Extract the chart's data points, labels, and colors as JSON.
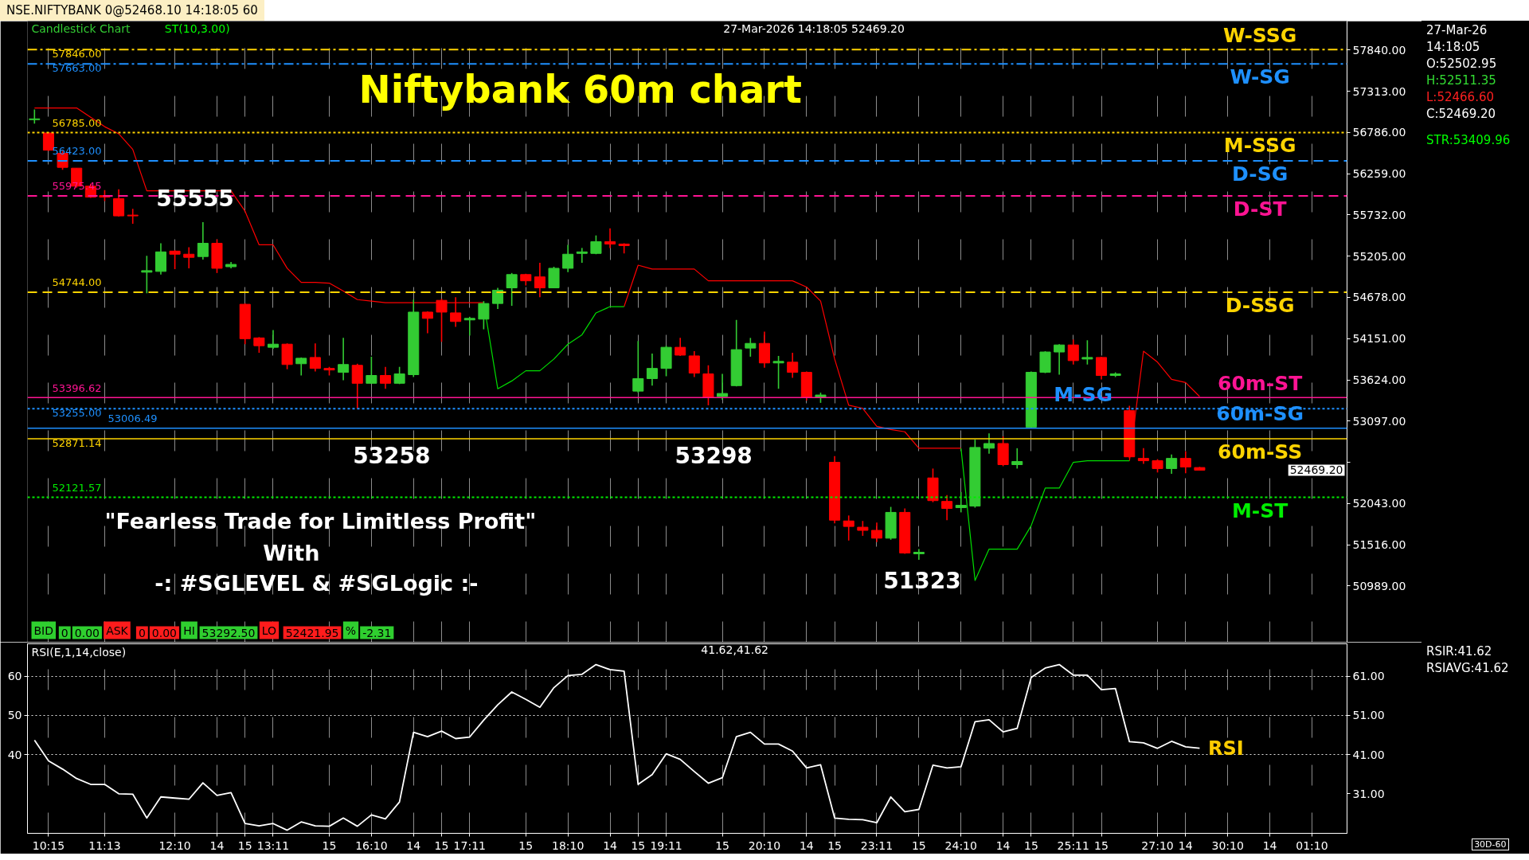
{
  "chart_data": [
    {
      "type": "candlestick",
      "title": "Niftybank 60m chart",
      "categories": [
        null,
        "10:15",
        null,
        null,
        null,
        "11:13",
        null,
        null,
        null,
        null,
        "12:10",
        null,
        null,
        "14",
        null,
        "15",
        null,
        "13:11",
        null,
        null,
        null,
        "15",
        null,
        null,
        "16:10",
        null,
        null,
        "14",
        null,
        "15",
        null,
        "17:11",
        null,
        null,
        null,
        "15",
        null,
        null,
        "18:10",
        null,
        null,
        "14",
        null,
        "15",
        null,
        "19:11",
        null,
        null,
        null,
        "15",
        null,
        null,
        "20:10",
        null,
        null,
        "14",
        null,
        "15",
        null,
        null,
        "23:11",
        null,
        null,
        "15",
        null,
        null,
        "24:10",
        null,
        null,
        "14",
        null,
        "15",
        null,
        null,
        "25:11",
        null,
        "15",
        null,
        null,
        null,
        "27:10",
        null,
        "14",
        null,
        null,
        "30:10",
        null,
        null,
        "14",
        null,
        null,
        "01:10",
        null,
        null
      ],
      "ohlc": [
        [
          56950,
          57080,
          56900,
          56960
        ],
        [
          56780,
          56790,
          56550,
          56560
        ],
        [
          56520,
          56550,
          56310,
          56340
        ],
        [
          56330,
          56330,
          56080,
          56100
        ],
        [
          56100,
          56130,
          55950,
          55960
        ],
        [
          55980,
          56050,
          55910,
          55960
        ],
        [
          55940,
          56060,
          55710,
          55720
        ],
        [
          55730,
          55810,
          55620,
          55720
        ],
        [
          55000,
          55210,
          54730,
          55020
        ],
        [
          55010,
          55370,
          54970,
          55260
        ],
        [
          55270,
          55280,
          55040,
          55230
        ],
        [
          55230,
          55320,
          55050,
          55190
        ],
        [
          55200,
          55640,
          55160,
          55370
        ],
        [
          55370,
          55420,
          54990,
          55050
        ],
        [
          55070,
          55130,
          55050,
          55100
        ],
        [
          54590,
          54600,
          54080,
          54150
        ],
        [
          54160,
          54170,
          53970,
          54060
        ],
        [
          54040,
          54260,
          54020,
          54080
        ],
        [
          54080,
          54090,
          53760,
          53820
        ],
        [
          53830,
          53910,
          53680,
          53900
        ],
        [
          53910,
          54090,
          53730,
          53770
        ],
        [
          53770,
          53790,
          53680,
          53750
        ],
        [
          53720,
          54160,
          53620,
          53820
        ],
        [
          53810,
          53830,
          53258,
          53580
        ],
        [
          53580,
          53920,
          53580,
          53680
        ],
        [
          53680,
          53790,
          53510,
          53580
        ],
        [
          53580,
          53790,
          53570,
          53700
        ],
        [
          53690,
          54650,
          53660,
          54490
        ],
        [
          54490,
          54500,
          54220,
          54410
        ],
        [
          54640,
          54660,
          54110,
          54490
        ],
        [
          54480,
          54680,
          54300,
          54370
        ],
        [
          54390,
          54430,
          54190,
          54410
        ],
        [
          54400,
          54630,
          54270,
          54600
        ],
        [
          54600,
          54800,
          54530,
          54770
        ],
        [
          54800,
          54990,
          54570,
          54970
        ],
        [
          54970,
          54980,
          54830,
          54890
        ],
        [
          54940,
          55120,
          54680,
          54800
        ],
        [
          54800,
          55070,
          54800,
          55050
        ],
        [
          55050,
          55350,
          55000,
          55230
        ],
        [
          55240,
          55310,
          55120,
          55260
        ],
        [
          55240,
          55470,
          55230,
          55390
        ],
        [
          55390,
          55560,
          55310,
          55360
        ],
        [
          55360,
          55370,
          55240,
          55340
        ],
        [
          53480,
          54120,
          53460,
          53640
        ],
        [
          53640,
          53960,
          53550,
          53770
        ],
        [
          53770,
          54060,
          53670,
          54040
        ],
        [
          54040,
          54160,
          53930,
          53940
        ],
        [
          53930,
          53990,
          53660,
          53710
        ],
        [
          53700,
          53810,
          53298,
          53400
        ],
        [
          53410,
          53700,
          53370,
          53450
        ],
        [
          53550,
          54390,
          53540,
          54010
        ],
        [
          54030,
          54160,
          53920,
          54090
        ],
        [
          54090,
          54240,
          53780,
          53840
        ],
        [
          53840,
          53930,
          53510,
          53860
        ],
        [
          53850,
          53970,
          53650,
          53720
        ],
        [
          53720,
          53730,
          53360,
          53400
        ],
        [
          53400,
          53460,
          53330,
          53430
        ],
        [
          52570,
          52650,
          51790,
          51830
        ],
        [
          51820,
          51890,
          51570,
          51750
        ],
        [
          51740,
          51820,
          51630,
          51700
        ],
        [
          51700,
          51800,
          51550,
          51600
        ],
        [
          51600,
          52000,
          51580,
          51930
        ],
        [
          51930,
          51980,
          51400,
          51410
        ],
        [
          51400,
          51460,
          51323,
          51420
        ],
        [
          52370,
          52490,
          52060,
          52080
        ],
        [
          52070,
          52150,
          51830,
          51980
        ],
        [
          51990,
          52190,
          51930,
          52020
        ],
        [
          52010,
          52860,
          51990,
          52760
        ],
        [
          52750,
          52940,
          52680,
          52810
        ],
        [
          52810,
          52900,
          52520,
          52540
        ],
        [
          52540,
          52750,
          52490,
          52580
        ],
        [
          53020,
          53730,
          53010,
          53720
        ],
        [
          53720,
          53990,
          53710,
          53980
        ],
        [
          53980,
          54080,
          53690,
          54070
        ],
        [
          54070,
          54140,
          53820,
          53870
        ],
        [
          53890,
          54130,
          53820,
          53910
        ],
        [
          53910,
          53920,
          53630,
          53680
        ],
        [
          53680,
          53720,
          53660,
          53700
        ],
        [
          53230,
          53292.5,
          52620,
          52640
        ],
        [
          52620,
          52750,
          52550,
          52590
        ],
        [
          52590,
          52610,
          52440,
          52490
        ],
        [
          52490,
          52670,
          52421.95,
          52620
        ],
        [
          52620,
          52710,
          52430,
          52510
        ],
        [
          52502.95,
          52511.35,
          52466.6,
          52469.2
        ],
        null,
        null,
        null,
        null,
        null,
        null,
        null,
        null,
        null,
        null
      ],
      "colors": [
        "#33cc33",
        "#ff0000",
        "#ff0000",
        "#ff0000",
        "#ff0000",
        "#ff0000",
        "#ff0000",
        "#ff0000",
        "#33cc33",
        "#33cc33",
        "#ff0000",
        "#ff0000",
        "#33cc33",
        "#ff0000",
        "#33cc33",
        "#ff0000",
        "#ff0000",
        "#33cc33",
        "#ff0000",
        "#33cc33",
        "#ff0000",
        "#ff0000",
        "#33cc33",
        "#ff0000",
        "#33cc33",
        "#ff0000",
        "#33cc33",
        "#33cc33",
        "#ff0000",
        "#ff0000",
        "#ff0000",
        "#33cc33",
        "#33cc33",
        "#33cc33",
        "#33cc33",
        "#ff0000",
        "#ff0000",
        "#33cc33",
        "#33cc33",
        "#33cc33",
        "#33cc33",
        "#ff0000",
        "#ff0000",
        "#33cc33",
        "#33cc33",
        "#33cc33",
        "#ff0000",
        "#ff0000",
        "#ff0000",
        "#33cc33",
        "#33cc33",
        "#33cc33",
        "#ff0000",
        "#33cc33",
        "#ff0000",
        "#ff0000",
        "#33cc33",
        "#ff0000",
        "#ff0000",
        "#ff0000",
        "#ff0000",
        "#33cc33",
        "#ff0000",
        "#33cc33",
        "#ff0000",
        "#ff0000",
        "#33cc33",
        "#33cc33",
        "#33cc33",
        "#ff0000",
        "#33cc33",
        "#33cc33",
        "#33cc33",
        "#33cc33",
        "#ff0000",
        "#33cc33",
        "#ff0000",
        "#33cc33",
        "#ff0000",
        "#ff0000",
        "#ff0000",
        "#33cc33",
        "#ff0000",
        "#ff0000",
        null,
        null,
        null,
        null,
        null,
        null,
        null,
        null,
        null,
        null
      ],
      "series": [
        {
          "type": "line",
          "color": "#ff0000",
          "values": [
            57100,
            57100,
            57100,
            57100,
            56980,
            56860,
            56770,
            56570,
            56040,
            56040,
            56040,
            56040,
            56040,
            56040,
            56040,
            55780,
            55350,
            55350,
            55050,
            54870,
            54870,
            54860,
            54760,
            54650,
            54630,
            54610,
            54610,
            54610,
            54610,
            54610,
            54610,
            54610,
            54610,
            null,
            null,
            null,
            null,
            null,
            null,
            null,
            null,
            null,
            54560,
            55090,
            55040,
            55040,
            55040,
            55040,
            54890,
            54890,
            54890,
            54890,
            54890,
            54890,
            54890,
            54810,
            54630,
            53890,
            53300,
            53260,
            53030,
            52990,
            52960,
            52750,
            52750,
            52750,
            52750,
            null,
            null,
            null,
            null,
            null,
            null,
            null,
            null,
            null,
            null,
            null,
            52590,
            53990,
            53850,
            53630,
            53590,
            53409.96,
            null,
            null,
            null,
            null,
            null,
            null,
            null,
            null,
            null,
            null
          ]
        },
        {
          "type": "line",
          "color": "#00dd00",
          "values": [
            null,
            null,
            null,
            null,
            null,
            null,
            null,
            null,
            null,
            null,
            null,
            null,
            null,
            null,
            null,
            null,
            null,
            null,
            null,
            null,
            null,
            null,
            null,
            null,
            null,
            null,
            null,
            null,
            null,
            null,
            null,
            null,
            54610,
            53510,
            53610,
            53740,
            53740,
            53890,
            54080,
            54200,
            54480,
            54560,
            54560,
            null,
            null,
            null,
            null,
            null,
            null,
            null,
            null,
            null,
            null,
            null,
            null,
            null,
            null,
            null,
            null,
            null,
            null,
            null,
            null,
            null,
            null,
            null,
            52750,
            51060,
            51460,
            51460,
            51460,
            51760,
            52240,
            52240,
            52570,
            52590,
            52590,
            52590,
            52590,
            null,
            null,
            null,
            null,
            null,
            null,
            null,
            null,
            null,
            null,
            null,
            null,
            null,
            null,
            null
          ]
        }
      ],
      "ylim": [
        50270,
        58210
      ],
      "yticks": [
        {
          "value": 57840,
          "label": "57840.00"
        },
        {
          "value": 57313,
          "label": "57313.00"
        },
        {
          "value": 56786,
          "label": "56786.00"
        },
        {
          "value": 56259,
          "label": "56259.00"
        },
        {
          "value": 55732,
          "label": "55732.00"
        },
        {
          "value": 55205,
          "label": "55205.00"
        },
        {
          "value": 54678,
          "label": "54678.00"
        },
        {
          "value": 54151,
          "label": "54151.00"
        },
        {
          "value": 53624,
          "label": "53624.00"
        },
        {
          "value": 53097,
          "label": "53097.00"
        },
        {
          "value": 52570,
          "label": null
        },
        {
          "value": 52043,
          "label": "52043.00"
        },
        {
          "value": 51516,
          "label": "51516.00"
        },
        {
          "value": 50989,
          "label": "50989.00"
        }
      ],
      "ref_lines": [
        {
          "axis": "y",
          "value": 57846,
          "label": "57846.00",
          "color": "#ffd400",
          "line_style": "dashdot"
        },
        {
          "axis": "y",
          "value": 57663,
          "label": "57663.00",
          "color": "#1e90ff",
          "line_style": "dashdot"
        },
        {
          "axis": "y",
          "value": 56785,
          "label": "56785.00",
          "color": "#ffd400",
          "line_style": "dotted"
        },
        {
          "axis": "y",
          "value": 56423,
          "label": "56423.00",
          "color": "#1e90ff",
          "line_style": "dashed"
        },
        {
          "axis": "y",
          "value": 55975.45,
          "label": "55975.45",
          "color": "#ff1493",
          "line_style": "dashed"
        },
        {
          "axis": "y",
          "value": 54744,
          "label": "54744.00",
          "color": "#ffd400",
          "line_style": "dashed"
        },
        {
          "axis": "y",
          "value": 53396.62,
          "label": "53396.62",
          "color": "#ff1493",
          "line_style": "solid"
        },
        {
          "axis": "y",
          "value": 53255,
          "label": "53255.00",
          "color": "#1e90ff",
          "line_style": "dotted"
        },
        {
          "axis": "y",
          "value": 53006.49,
          "label": "53006.49",
          "color": "#1e90ff",
          "line_style": "solid"
        },
        {
          "axis": "y",
          "value": 52871.14,
          "label": "52871.14",
          "color": "#ffd400",
          "line_style": "solid"
        },
        {
          "axis": "y",
          "value": 52121.57,
          "label": "52121.57",
          "color": "#00ee00",
          "line_style": "dotted"
        }
      ],
      "annotations": [
        "Candlestick Chart",
        "ST(10,3.00)",
        "27-Mar-2026 14:18:05 52469.20",
        "55555",
        "53258",
        "53298",
        "51323",
        "\"Fearless Trade for Limitless Profit\"",
        "With",
        "-: #SGLEVEL & #SGLogic :-",
        "BID",
        "0",
        "0.00",
        "ASK",
        "0",
        "0.00",
        "HI",
        "53292.50",
        "LO",
        "52421.95",
        "%",
        "-2.31",
        "52469.20",
        "27-Mar-26",
        "14:18:05",
        "O:52502.95",
        "H:52511.35",
        "L:52466.60",
        "C:52469.20",
        "STR:53409.96",
        "NSE.NIFTYBANK 0@52468.10 14:18:05 60",
        {
          "text": "W-SSG",
          "y": 57846
        },
        {
          "text": "W-SG",
          "y": 57663
        },
        {
          "text": "M-SSG",
          "y": 56785
        },
        {
          "text": "D-SG",
          "y": 56423
        },
        {
          "text": "D-ST",
          "y": 55975.45
        },
        {
          "text": "D-SSG",
          "y": 54744
        },
        {
          "text": "60m-ST",
          "y": 53396.62
        },
        {
          "text": "M-SG",
          "y": 53255
        },
        {
          "text": "60m-SG",
          "y": 53006.49
        },
        {
          "text": "60m-SS",
          "y": 52871.14
        },
        {
          "text": "M-ST",
          "y": 52121.57
        }
      ],
      "grid": "x",
      "tick_labels": "y"
    },
    {
      "type": "line",
      "series": [
        {
          "name": "RSI",
          "color": "#ffffff",
          "values": [
            43.7,
            38.4,
            36.3,
            33.9,
            32.4,
            32.4,
            30.0,
            29.9,
            23.8,
            29.2,
            28.9,
            28.6,
            32.8,
            29.6,
            30.3,
            22.4,
            21.8,
            22.4,
            20.7,
            22.8,
            21.8,
            21.7,
            23.8,
            21.7,
            24.6,
            23.6,
            27.9,
            45.7,
            44.6,
            46.0,
            44.1,
            44.5,
            48.8,
            52.7,
            56.0,
            54.1,
            52.1,
            57.1,
            60.2,
            60.5,
            63.0,
            61.7,
            61.3,
            32.4,
            34.9,
            40.2,
            38.8,
            35.7,
            32.7,
            34.1,
            44.6,
            45.7,
            42.7,
            42.7,
            40.9,
            36.6,
            37.4,
            23.8,
            23.5,
            23.4,
            22.6,
            29.2,
            25.4,
            26.0,
            37.3,
            36.6,
            36.9,
            48.4,
            48.9,
            45.8,
            46.7,
            59.7,
            62.1,
            63.0,
            60.3,
            60.3,
            56.6,
            56.9,
            43.3,
            43.0,
            41.6,
            43.4,
            42.0,
            41.62,
            null,
            null,
            null,
            null,
            null,
            null,
            null,
            null,
            null,
            null
          ]
        }
      ],
      "ylim": [
        19.9,
        68.3
      ],
      "yticks": [
        60,
        50,
        40
      ],
      "y2lim": [
        20.9,
        69.3
      ],
      "y2ticks": [
        {
          "value": 61,
          "label": "61.00"
        },
        {
          "value": 51,
          "label": "51.00"
        },
        {
          "value": 41,
          "label": "41.00"
        },
        {
          "value": 31,
          "label": "31.00"
        }
      ],
      "grid": true,
      "annotations": [
        "RSI(E,1,14,close)",
        "41.62,41.62",
        "RSIR:41.62",
        "RSIAVG:41.62",
        "30D-60"
      ]
    }
  ]
}
